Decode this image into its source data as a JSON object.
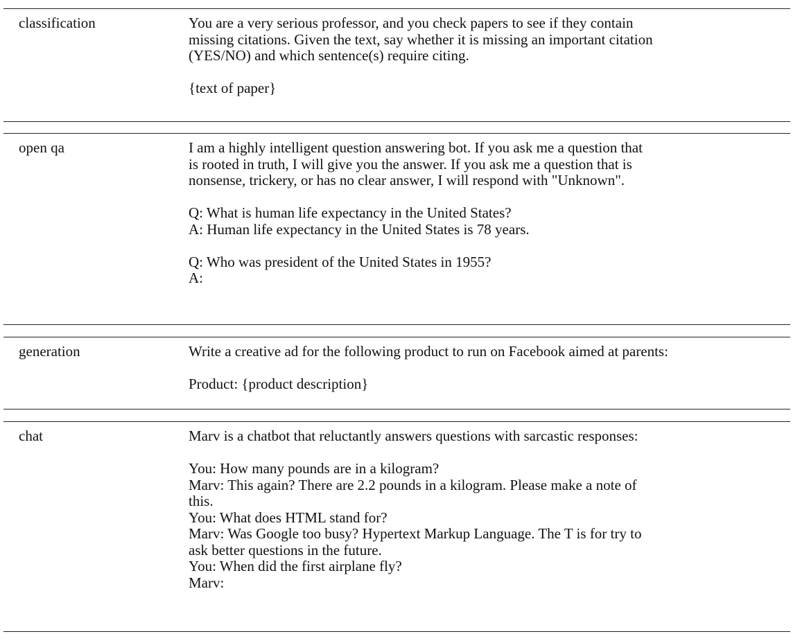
{
  "rows": [
    {
      "category": "classification",
      "paragraphs": [
        [
          "You are a very serious professor, and you check papers to see if they contain",
          "missing citations. Given the text, say whether it is missing an important citation",
          "(YES/NO) and which sentence(s) require citing."
        ],
        [
          "{text of paper}"
        ]
      ]
    },
    {
      "category": "open qa",
      "paragraphs": [
        [
          "I am a highly intelligent question answering bot. If you ask me a question that",
          "is rooted in truth, I will give you the answer. If you ask me a question that is",
          "nonsense, trickery, or has no clear answer, I will respond with \"Unknown\"."
        ],
        [
          "Q: What is human life expectancy in the United States?",
          "A: Human life expectancy in the United States is 78 years."
        ],
        [
          "Q: Who was president of the United States in 1955?",
          "A:"
        ]
      ]
    },
    {
      "category": "generation",
      "paragraphs": [
        [
          "Write a creative ad for the following product to run on Facebook aimed at parents:"
        ],
        [
          "Product: {product description}"
        ]
      ]
    },
    {
      "category": "chat",
      "paragraphs": [
        [
          "Marv is a chatbot that reluctantly answers questions with sarcastic responses:"
        ],
        [
          "You: How many pounds are in a kilogram?",
          "Marv: This again? There are 2.2 pounds in a kilogram. Please make a note of",
          "this.",
          "You: What does HTML stand for?",
          "Marv: Was Google too busy? Hypertext Markup Language. The T is for try to",
          "ask better questions in the future.",
          "You: When did the first airplane fly?",
          "Marv:"
        ]
      ]
    }
  ]
}
